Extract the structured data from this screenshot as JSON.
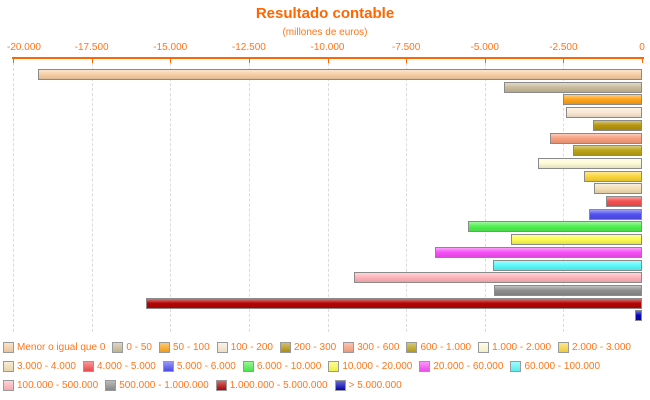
{
  "chart_data": {
    "type": "bar",
    "orientation": "horizontal",
    "title": "Resultado contable",
    "subtitle": "(millones de euros)",
    "xlabel": "",
    "ylabel": "",
    "xlim": [
      -20000,
      0
    ],
    "grid": "vertical-dashed",
    "legend_position": "bottom",
    "x_ticks": [
      {
        "value": -20000,
        "label": "-20.000"
      },
      {
        "value": -17500,
        "label": "-17.500"
      },
      {
        "value": -15000,
        "label": "-15.000"
      },
      {
        "value": -12500,
        "label": "-12.500"
      },
      {
        "value": -10000,
        "label": "-10.000"
      },
      {
        "value": -7500,
        "label": "-7.500"
      },
      {
        "value": -5000,
        "label": "-5.000"
      },
      {
        "value": -2500,
        "label": "-2.500"
      },
      {
        "value": 0,
        "label": "0"
      }
    ],
    "categories": [
      "Menor o igual que 0",
      "0 - 50",
      "50 - 100",
      "100 - 200",
      "200 - 300",
      "300 - 600",
      "600 - 1.000",
      "1.000 - 2.000",
      "2.000 - 3.000",
      "3.000 - 4.000",
      "4.000 - 5.000",
      "5.000 - 6.000",
      "6.000 - 10.000",
      "10.000 - 20.000",
      "20.000 - 60.000",
      "60.000 - 100.000",
      "100.000 - 500.000",
      "500.000 - 1.000.000",
      "1.000.000 - 5.000.000",
      "> 5.000.000"
    ],
    "values": [
      -19200,
      -4380,
      -2500,
      -2410,
      -1570,
      -2920,
      -2200,
      -3320,
      -1830,
      -1520,
      -1130,
      -1700,
      -5520,
      -4160,
      -6580,
      -4740,
      -9150,
      -4690,
      -15760,
      -210
    ],
    "colors": [
      "#F7CFA4",
      "#C9BB9B",
      "#FFA318",
      "#FBE9D3",
      "#B6950C",
      "#F99F7E",
      "#BCA316",
      "#FDFBD5",
      "#FBD63B",
      "#F4DFB7",
      "#F54F4F",
      "#5050F0",
      "#50F050",
      "#FCFC50",
      "#F750F7",
      "#5AFBFB",
      "#FFB3BA",
      "#8E8E8E",
      "#B50505",
      "#0505B5"
    ],
    "legend_rows": [
      [
        0,
        1,
        2,
        3,
        4,
        5,
        6,
        7,
        8
      ],
      [
        9,
        10,
        11,
        12,
        13,
        14,
        15
      ],
      [
        16,
        17,
        18,
        19
      ]
    ],
    "accent_color": "#FF6600",
    "text_color": "#FF7519"
  }
}
